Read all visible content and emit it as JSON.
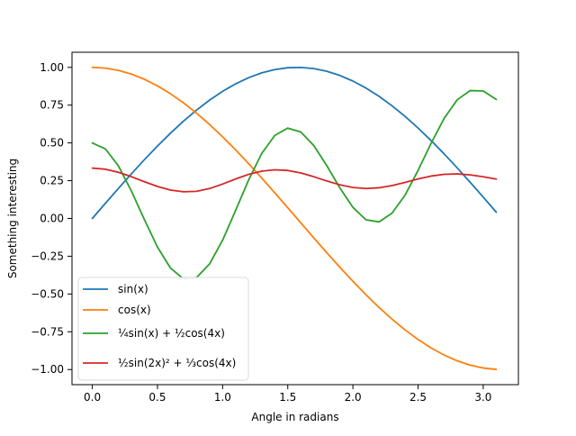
{
  "chart_data": {
    "type": "line",
    "title": "",
    "xlabel": "Angle in radians",
    "ylabel": "Something interesting",
    "xlim": [
      -0.156,
      3.27
    ],
    "ylim": [
      -1.1,
      1.1
    ],
    "xticks": [
      0.0,
      0.5,
      1.0,
      1.5,
      2.0,
      2.5,
      3.0
    ],
    "xtick_labels": [
      "0.0",
      "0.5",
      "1.0",
      "1.5",
      "2.0",
      "2.5",
      "3.0"
    ],
    "yticks": [
      -1.0,
      -0.75,
      -0.5,
      -0.25,
      0.0,
      0.25,
      0.5,
      0.75,
      1.0
    ],
    "ytick_labels": [
      "−1.00",
      "−0.75",
      "−0.50",
      "−0.25",
      "0.00",
      "0.25",
      "0.50",
      "0.75",
      "1.00"
    ],
    "grid": false,
    "legend_position": "lower-left",
    "x": [
      0.0,
      0.1,
      0.2,
      0.3,
      0.4,
      0.5,
      0.6,
      0.7,
      0.8,
      0.9,
      1.0,
      1.1,
      1.2,
      1.3,
      1.4,
      1.5,
      1.6,
      1.7,
      1.8,
      1.9,
      2.0,
      2.1,
      2.2,
      2.3,
      2.4,
      2.5,
      2.6,
      2.7,
      2.8,
      2.9,
      3.0,
      3.1
    ],
    "series": [
      {
        "legend_label": "sin(x)",
        "color": "#1f77b4",
        "values": [
          0.0,
          0.0998,
          0.1987,
          0.2955,
          0.3894,
          0.4794,
          0.5646,
          0.6442,
          0.7174,
          0.7833,
          0.8415,
          0.8912,
          0.932,
          0.9636,
          0.9854,
          0.9975,
          0.9996,
          0.9917,
          0.9738,
          0.9463,
          0.9093,
          0.8632,
          0.8085,
          0.7457,
          0.6755,
          0.5985,
          0.5155,
          0.4274,
          0.335,
          0.2392,
          0.1411,
          0.0416
        ]
      },
      {
        "legend_label": "cos(x)",
        "color": "#ff7f0e",
        "values": [
          1.0,
          0.995,
          0.9801,
          0.9553,
          0.9211,
          0.8776,
          0.8253,
          0.7648,
          0.6967,
          0.6216,
          0.5403,
          0.4536,
          0.3624,
          0.2675,
          0.17,
          0.0707,
          -0.0292,
          -0.1288,
          -0.2272,
          -0.3233,
          -0.4161,
          -0.5048,
          -0.5885,
          -0.6663,
          -0.7374,
          -0.8011,
          -0.8569,
          -0.9041,
          -0.9422,
          -0.971,
          -0.99,
          -0.9991
        ]
      },
      {
        "legend_label": "¼sin(x) + ½cos(4x)",
        "color": "#2ca02c",
        "values": [
          0.5,
          0.4605,
          0.3484,
          0.1812,
          -0.0083,
          -0.1894,
          -0.3285,
          -0.4005,
          -0.3914,
          -0.3005,
          -0.1438,
          0.0534,
          0.2558,
          0.43,
          0.5493,
          0.598,
          0.5724,
          0.4823,
          0.3488,
          0.2017,
          0.0734,
          -0.0091,
          -0.0228,
          0.0351,
          0.1541,
          0.318,
          0.497,
          0.6622,
          0.7851,
          0.8464,
          0.8438,
          0.7877
        ]
      },
      {
        "legend_label": "½sin(2x)² + ⅓cos(4x)",
        "color": "#d62728",
        "values": [
          0.3333,
          0.326,
          0.3056,
          0.2763,
          0.243,
          0.2118,
          0.188,
          0.1764,
          0.1797,
          0.198,
          0.2276,
          0.2614,
          0.2918,
          0.3131,
          0.3219,
          0.3178,
          0.3014,
          0.2762,
          0.2479,
          0.2225,
          0.205,
          0.1982,
          0.203,
          0.2178,
          0.2388,
          0.2613,
          0.2805,
          0.2923,
          0.2949,
          0.2885,
          0.2757,
          0.2606
        ]
      }
    ]
  }
}
